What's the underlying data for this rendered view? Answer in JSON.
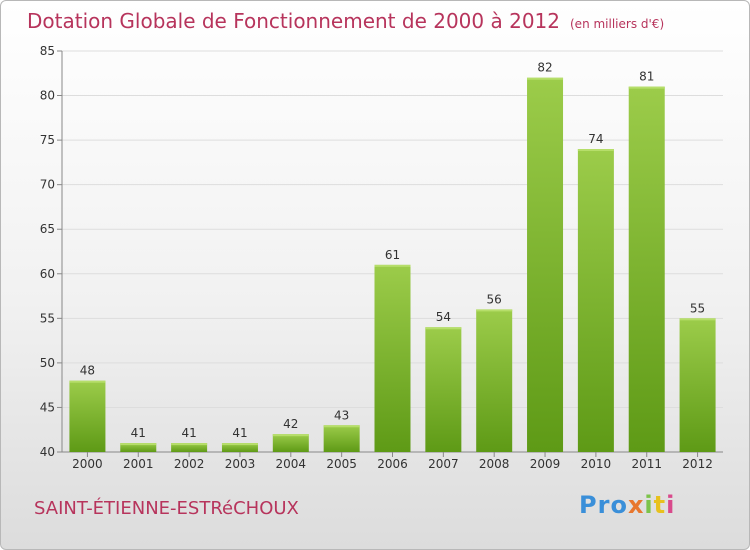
{
  "header": {
    "title": "Dotation Globale de Fonctionnement de 2000 à 2012",
    "unit": "(en milliers d'€)"
  },
  "footer": {
    "city": "SAINT-ÉTIENNE-ESTRéCHOUX",
    "logo": [
      "P",
      "r",
      "o",
      "x",
      "i",
      "t",
      "i"
    ],
    "logo_colors": [
      "#3a8fd9",
      "#3a8fd9",
      "#3a8fd9",
      "#e8772e",
      "#7cc34a",
      "#e8c11e",
      "#d94a8c"
    ]
  },
  "colors": {
    "bar_light": "#9ccc4a",
    "bar_dark": "#5e9a16",
    "title": "#b7345c",
    "grid": "#dddddd",
    "axis_text": "#333333"
  },
  "chart_data": {
    "type": "bar",
    "title": "Dotation Globale de Fonctionnement de 2000 à 2012",
    "subtitle": "(en milliers d'€)",
    "xlabel": "",
    "ylabel": "",
    "categories": [
      "2000",
      "2001",
      "2002",
      "2003",
      "2004",
      "2005",
      "2006",
      "2007",
      "2008",
      "2009",
      "2010",
      "2011",
      "2012"
    ],
    "values": [
      48,
      41,
      41,
      41,
      42,
      43,
      61,
      54,
      56,
      82,
      74,
      81,
      55
    ],
    "ylim": [
      40,
      85
    ],
    "yticks": [
      40,
      45,
      50,
      55,
      60,
      65,
      70,
      75,
      80,
      85
    ],
    "grid": true,
    "legend": "none"
  }
}
